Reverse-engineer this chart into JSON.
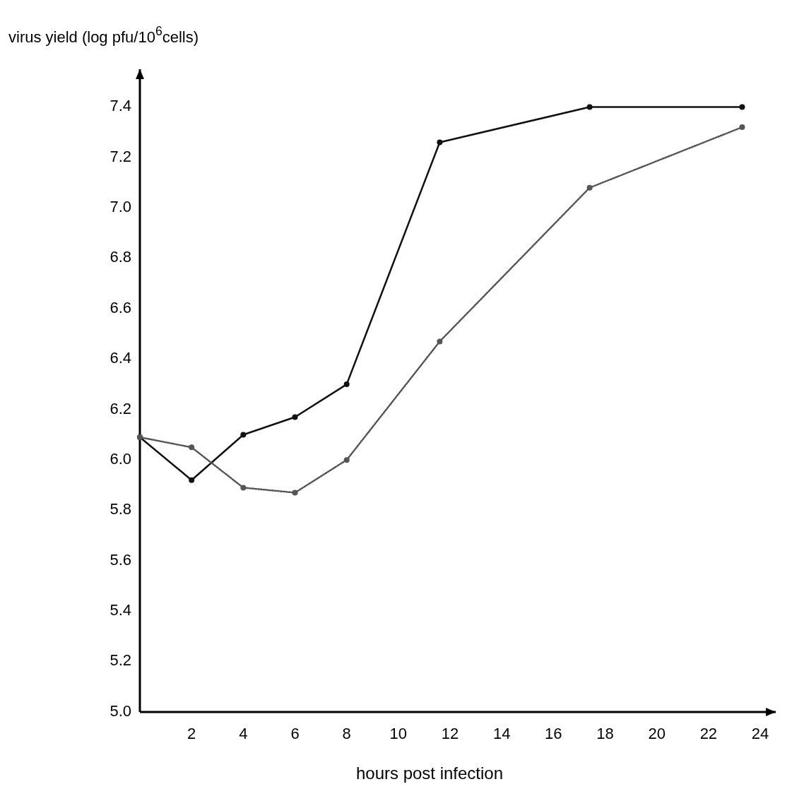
{
  "chart_data": {
    "type": "line",
    "ylabel": "virus yield (log pfu/10$^{6}$cells)",
    "xlabel": "hours post infection",
    "xlim": [
      0,
      24.6
    ],
    "xticks": [
      2,
      4,
      6,
      8,
      10,
      12,
      14,
      16,
      18,
      20,
      22,
      24
    ],
    "ylim": [
      5.0,
      7.55
    ],
    "yticks": [
      {
        "value": 5,
        "label": "5.0"
      },
      5.2,
      5.4,
      5.6,
      5.8,
      {
        "value": 6,
        "label": "6.0"
      },
      6.2,
      6.4,
      6.6,
      6.8,
      {
        "value": 7,
        "label": "7.0"
      },
      7.2,
      7.4
    ],
    "marker": "circle",
    "series": [
      {
        "color": "#111111",
        "line_style": "solid",
        "x": [
          0,
          2,
          4,
          6,
          8,
          11.6,
          17.4,
          23.3
        ],
        "values": [
          6.09,
          5.92,
          6.1,
          6.17,
          6.3,
          7.26,
          7.4,
          7.4
        ]
      },
      {
        "color": "#555555",
        "line_style": "dotted",
        "x": [
          0,
          2,
          4,
          6,
          8,
          11.6,
          17.4,
          23.3
        ],
        "values": [
          6.09,
          6.05,
          5.89,
          5.87,
          6.0,
          6.47,
          7.08,
          7.32
        ]
      }
    ]
  }
}
